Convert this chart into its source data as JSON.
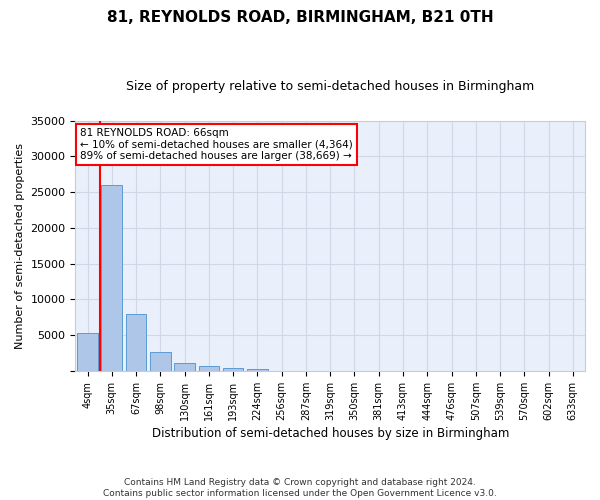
{
  "title": "81, REYNOLDS ROAD, BIRMINGHAM, B21 0TH",
  "subtitle": "Size of property relative to semi-detached houses in Birmingham",
  "xlabel": "Distribution of semi-detached houses by size in Birmingham",
  "ylabel": "Number of semi-detached properties",
  "categories": [
    "4sqm",
    "35sqm",
    "67sqm",
    "98sqm",
    "130sqm",
    "161sqm",
    "193sqm",
    "224sqm",
    "256sqm",
    "287sqm",
    "319sqm",
    "350sqm",
    "381sqm",
    "413sqm",
    "444sqm",
    "476sqm",
    "507sqm",
    "539sqm",
    "570sqm",
    "602sqm",
    "633sqm"
  ],
  "values": [
    5300,
    26000,
    8000,
    2700,
    1100,
    700,
    400,
    300,
    0,
    0,
    0,
    0,
    0,
    0,
    0,
    0,
    0,
    0,
    0,
    0,
    0
  ],
  "bar_color": "#aec6e8",
  "bar_edge_color": "#5b9bd5",
  "annotation_text": "81 REYNOLDS ROAD: 66sqm\n← 10% of semi-detached houses are smaller (4,364)\n89% of semi-detached houses are larger (38,669) →",
  "annotation_box_color": "white",
  "annotation_box_edge_color": "red",
  "vline_color": "red",
  "ylim": [
    0,
    35000
  ],
  "yticks": [
    0,
    5000,
    10000,
    15000,
    20000,
    25000,
    30000,
    35000
  ],
  "grid_color": "#d0d8e8",
  "background_color": "#eaf0fb",
  "footer": "Contains HM Land Registry data © Crown copyright and database right 2024.\nContains public sector information licensed under the Open Government Licence v3.0."
}
